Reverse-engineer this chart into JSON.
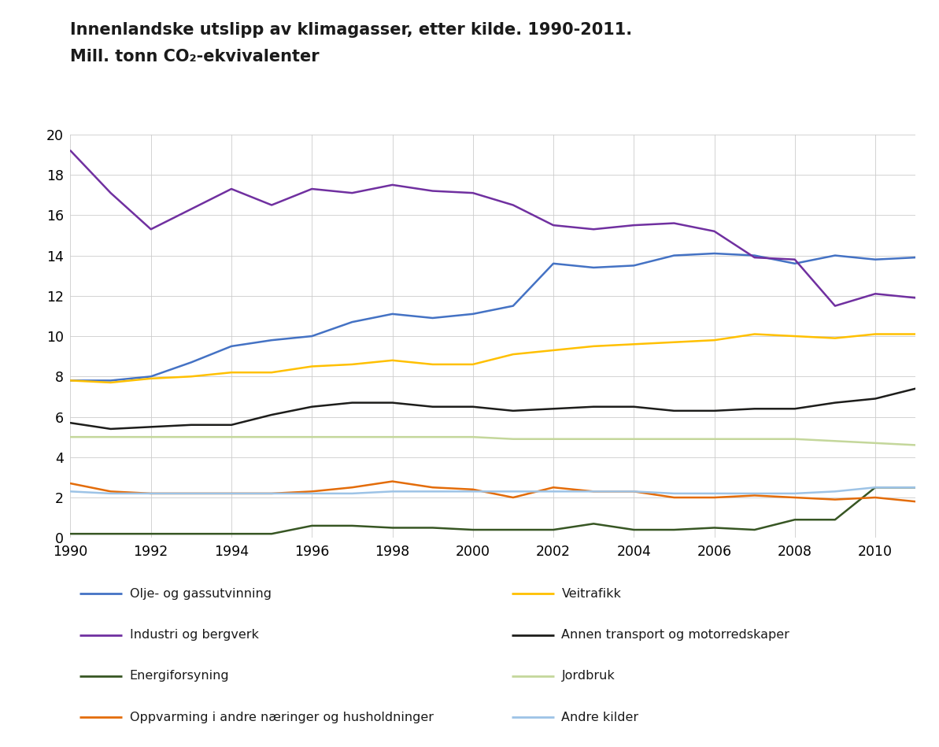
{
  "title_line1": "Innenlandske utslipp av klimagasser, etter kilde. 1990-2011.",
  "title_line2": "Mill. tonn CO₂-ekvivalenter",
  "years": [
    1990,
    1991,
    1992,
    1993,
    1994,
    1995,
    1996,
    1997,
    1998,
    1999,
    2000,
    2001,
    2002,
    2003,
    2004,
    2005,
    2006,
    2007,
    2008,
    2009,
    2010,
    2011
  ],
  "series": {
    "Olje- og gassutvinning": {
      "color": "#4472C4",
      "values": [
        7.8,
        7.8,
        8.0,
        8.7,
        9.5,
        9.8,
        10.0,
        10.7,
        11.1,
        10.9,
        11.1,
        11.5,
        13.6,
        13.4,
        13.5,
        14.0,
        14.1,
        14.0,
        13.6,
        14.0,
        13.8,
        13.9
      ]
    },
    "Industri og bergverk": {
      "color": "#7030A0",
      "values": [
        19.2,
        17.1,
        15.3,
        16.3,
        17.3,
        16.5,
        17.3,
        17.1,
        17.5,
        17.2,
        17.1,
        16.5,
        15.5,
        15.3,
        15.5,
        15.6,
        15.2,
        13.9,
        13.8,
        11.5,
        12.1,
        11.9
      ]
    },
    "Energiforsyning": {
      "color": "#375623",
      "values": [
        0.2,
        0.2,
        0.2,
        0.2,
        0.2,
        0.2,
        0.6,
        0.6,
        0.5,
        0.5,
        0.4,
        0.4,
        0.4,
        0.7,
        0.4,
        0.4,
        0.5,
        0.4,
        0.9,
        0.9,
        2.5,
        2.5
      ]
    },
    "Oppvarming i andre næringer og husholdninger": {
      "color": "#E36C09",
      "values": [
        2.7,
        2.3,
        2.2,
        2.2,
        2.2,
        2.2,
        2.3,
        2.5,
        2.8,
        2.5,
        2.4,
        2.0,
        2.5,
        2.3,
        2.3,
        2.0,
        2.0,
        2.1,
        2.0,
        1.9,
        2.0,
        1.8
      ]
    },
    "Veitrafikk": {
      "color": "#FFC000",
      "values": [
        7.8,
        7.7,
        7.9,
        8.0,
        8.2,
        8.2,
        8.5,
        8.6,
        8.8,
        8.6,
        8.6,
        9.1,
        9.3,
        9.5,
        9.6,
        9.7,
        9.8,
        10.1,
        10.0,
        9.9,
        10.1,
        10.1
      ]
    },
    "Annen transport og motorredskaper": {
      "color": "#1D1D1B",
      "values": [
        5.7,
        5.4,
        5.5,
        5.6,
        5.6,
        6.1,
        6.5,
        6.7,
        6.7,
        6.5,
        6.5,
        6.3,
        6.4,
        6.5,
        6.5,
        6.3,
        6.3,
        6.4,
        6.4,
        6.7,
        6.9,
        7.4
      ]
    },
    "Jordbruk": {
      "color": "#C4D79B",
      "values": [
        5.0,
        5.0,
        5.0,
        5.0,
        5.0,
        5.0,
        5.0,
        5.0,
        5.0,
        5.0,
        5.0,
        4.9,
        4.9,
        4.9,
        4.9,
        4.9,
        4.9,
        4.9,
        4.9,
        4.8,
        4.7,
        4.6
      ]
    },
    "Andre kilder": {
      "color": "#9DC3E6",
      "values": [
        2.3,
        2.2,
        2.2,
        2.2,
        2.2,
        2.2,
        2.2,
        2.2,
        2.3,
        2.3,
        2.3,
        2.3,
        2.3,
        2.3,
        2.3,
        2.2,
        2.2,
        2.2,
        2.2,
        2.3,
        2.5,
        2.5
      ]
    }
  },
  "ylim": [
    0,
    20
  ],
  "yticks": [
    0,
    2,
    4,
    6,
    8,
    10,
    12,
    14,
    16,
    18,
    20
  ],
  "xlim": [
    1990,
    2011
  ],
  "xticks": [
    1990,
    1992,
    1994,
    1996,
    1998,
    2000,
    2002,
    2004,
    2006,
    2008,
    2010
  ],
  "legend_col1": [
    "Olje- og gassutvinning",
    "Industri og bergverk",
    "Energiforsyning",
    "Oppvarming i andre næringer og husholdninger"
  ],
  "legend_col2": [
    "Veitrafikk",
    "Annen transport og motorredskaper",
    "Jordbruk",
    "Andre kilder"
  ],
  "background_color": "#ffffff",
  "grid_color": "#cccccc"
}
